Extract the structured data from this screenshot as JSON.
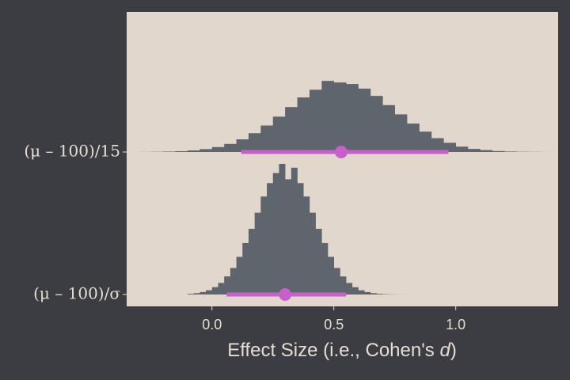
{
  "chart_data": {
    "type": "histinterval",
    "xlabel": "Effect Size (i.e., Cohen's ",
    "xlabel_italic": "d",
    "xlabel_end": ")",
    "xlim": [
      -0.35,
      1.42
    ],
    "xticks": [
      {
        "value": 0,
        "label": "0.0"
      },
      {
        "value": 0.5,
        "label": "0.5"
      },
      {
        "value": 1,
        "label": "1.0"
      }
    ],
    "slab_color": "#5f656d",
    "interval_color": "#c860cc",
    "panel_color": "#e2d7cc",
    "rows": [
      {
        "name": "(μ – 100)/15",
        "bins": [
          -0.3,
          -0.25,
          -0.2,
          -0.15,
          -0.1,
          -0.05,
          0,
          0.05,
          0.1,
          0.15,
          0.2,
          0.25,
          0.3,
          0.35,
          0.4,
          0.45,
          0.5,
          0.55,
          0.6,
          0.65,
          0.7,
          0.75,
          0.8,
          0.85,
          0.9,
          0.95,
          1,
          1.05,
          1.1,
          1.15,
          1.2,
          1.25,
          1.3,
          1.35,
          1.4
        ],
        "counts": [
          0.002,
          0.005,
          0.011,
          0.021,
          0.041,
          0.075,
          0.128,
          0.21,
          0.33,
          0.49,
          0.69,
          0.92,
          1.17,
          1.42,
          1.62,
          1.85,
          1.81,
          1.77,
          1.65,
          1.46,
          1.22,
          0.98,
          0.74,
          0.53,
          0.36,
          0.24,
          0.14,
          0.08,
          0.05,
          0.025,
          0.012,
          0.006,
          0.003,
          0.001
        ],
        "point": 0.53,
        "interval": [
          0.12,
          0.97
        ]
      },
      {
        "name": "(μ – 100)/σ",
        "bins": [
          -0.1,
          -0.075,
          -0.05,
          -0.025,
          0,
          0.025,
          0.05,
          0.075,
          0.1,
          0.125,
          0.15,
          0.175,
          0.2,
          0.225,
          0.25,
          0.275,
          0.3,
          0.325,
          0.35,
          0.375,
          0.4,
          0.425,
          0.45,
          0.475,
          0.5,
          0.525,
          0.55,
          0.575,
          0.6,
          0.625,
          0.65,
          0.675,
          0.7,
          0.725,
          0.75,
          0.775,
          0.8
        ],
        "counts": [
          0.018,
          0.035,
          0.064,
          0.11,
          0.19,
          0.3,
          0.47,
          0.69,
          0.98,
          1.34,
          1.71,
          2.13,
          2.55,
          2.9,
          3.16,
          3.4,
          3.0,
          3.3,
          2.9,
          2.55,
          2.13,
          1.71,
          1.34,
          0.98,
          0.69,
          0.47,
          0.3,
          0.19,
          0.11,
          0.064,
          0.035,
          0.018,
          0.009,
          0.004,
          0.002,
          0.001
        ],
        "point": 0.3,
        "interval": [
          0.06,
          0.55
        ]
      }
    ]
  }
}
